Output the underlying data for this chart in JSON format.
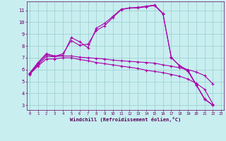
{
  "xlabel": "Windchill (Refroidissement éolien,°C)",
  "bg_color": "#c8eef0",
  "line_color": "#aa00aa",
  "grid_color": "#99cccc",
  "spine_color": "#660066",
  "tick_color": "#660066",
  "label_color": "#550055",
  "xlim_min": -0.3,
  "xlim_max": 23.3,
  "ylim_min": 2.6,
  "ylim_max": 11.75,
  "yticks": [
    3,
    4,
    5,
    6,
    7,
    8,
    9,
    10,
    11
  ],
  "xticks": [
    0,
    1,
    2,
    3,
    4,
    5,
    6,
    7,
    8,
    9,
    10,
    11,
    12,
    13,
    14,
    15,
    16,
    17,
    18,
    19,
    20,
    21,
    22,
    23
  ],
  "curves": [
    {
      "x": [
        0,
        1,
        2,
        3,
        4,
        5,
        6,
        7,
        8,
        9,
        10,
        11,
        12,
        13,
        14,
        15,
        16,
        17,
        18,
        19,
        20,
        21,
        22
      ],
      "y": [
        5.7,
        6.6,
        7.35,
        7.15,
        7.2,
        8.7,
        8.35,
        7.85,
        9.5,
        9.9,
        10.5,
        11.1,
        11.2,
        11.25,
        11.35,
        11.45,
        10.75,
        7.0,
        6.35,
        5.95,
        4.75,
        3.55,
        3.0
      ]
    },
    {
      "x": [
        0,
        1,
        2,
        3,
        4,
        5,
        6,
        7,
        8,
        9,
        10,
        11,
        12,
        13,
        14,
        15,
        16,
        17,
        18,
        19,
        20,
        21,
        22
      ],
      "y": [
        5.7,
        6.5,
        7.25,
        7.1,
        7.35,
        8.45,
        8.05,
        8.15,
        9.3,
        9.7,
        10.4,
        11.05,
        11.2,
        11.2,
        11.3,
        11.4,
        10.7,
        7.05,
        6.3,
        5.85,
        4.7,
        3.5,
        3.0
      ]
    },
    {
      "x": [
        0,
        1,
        2,
        3,
        4,
        5,
        6,
        7,
        8,
        9,
        10,
        11,
        12,
        13,
        14,
        15,
        16,
        17,
        18,
        19,
        20,
        21,
        22
      ],
      "y": [
        5.65,
        6.4,
        7.1,
        7.1,
        7.15,
        7.15,
        7.05,
        7.0,
        6.95,
        6.9,
        6.8,
        6.75,
        6.7,
        6.65,
        6.6,
        6.55,
        6.4,
        6.3,
        6.15,
        6.0,
        5.8,
        5.5,
        4.8
      ]
    },
    {
      "x": [
        0,
        1,
        2,
        3,
        4,
        5,
        6,
        7,
        8,
        9,
        10,
        11,
        12,
        13,
        14,
        15,
        16,
        17,
        18,
        19,
        20,
        21,
        22
      ],
      "y": [
        5.6,
        6.3,
        6.9,
        6.9,
        7.0,
        7.0,
        6.85,
        6.75,
        6.6,
        6.5,
        6.4,
        6.3,
        6.2,
        6.1,
        5.95,
        5.85,
        5.75,
        5.6,
        5.45,
        5.2,
        4.85,
        4.35,
        3.1
      ]
    }
  ]
}
